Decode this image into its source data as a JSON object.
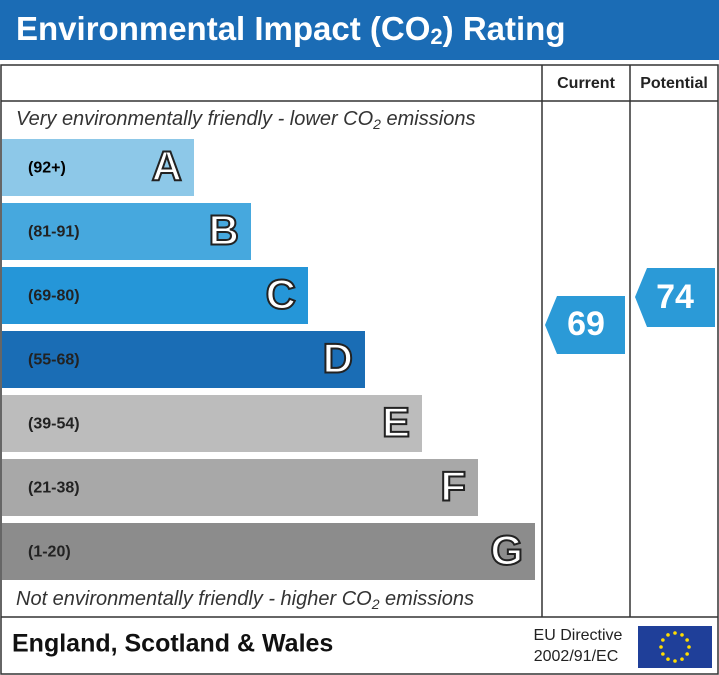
{
  "header": {
    "title": [
      "Environmental Impact (CO",
      "2",
      ") Rating"
    ]
  },
  "columns": [
    "Current",
    "Potential"
  ],
  "top_note": [
    "Very environmentally friendly - lower CO",
    "2",
    " emissions"
  ],
  "bands": [
    {
      "range": "(92+)",
      "letter": "A",
      "color": "#8dc8e8"
    },
    {
      "range": "(81-91)",
      "letter": "B",
      "color": "#46a8de"
    },
    {
      "range": "(69-80)",
      "letter": "C",
      "color": "#2596d8"
    },
    {
      "range": "(55-68)",
      "letter": "D",
      "color": "#1a6db5"
    },
    {
      "range": "(39-54)",
      "letter": "E",
      "color": "#bcbcbc"
    },
    {
      "range": "(21-38)",
      "letter": "F",
      "color": "#a8a8a8"
    },
    {
      "range": "(1-20)",
      "letter": "G",
      "color": "#8c8c8c"
    }
  ],
  "current": 69,
  "potential": 74,
  "arrow_color": "#2b9ad7",
  "bottom_note": [
    "Not environmentally friendly - higher CO",
    "2",
    " emissions"
  ],
  "footer": {
    "region": "England, Scotland & Wales",
    "directive": [
      "EU Directive",
      "2002/91/EC"
    ]
  }
}
